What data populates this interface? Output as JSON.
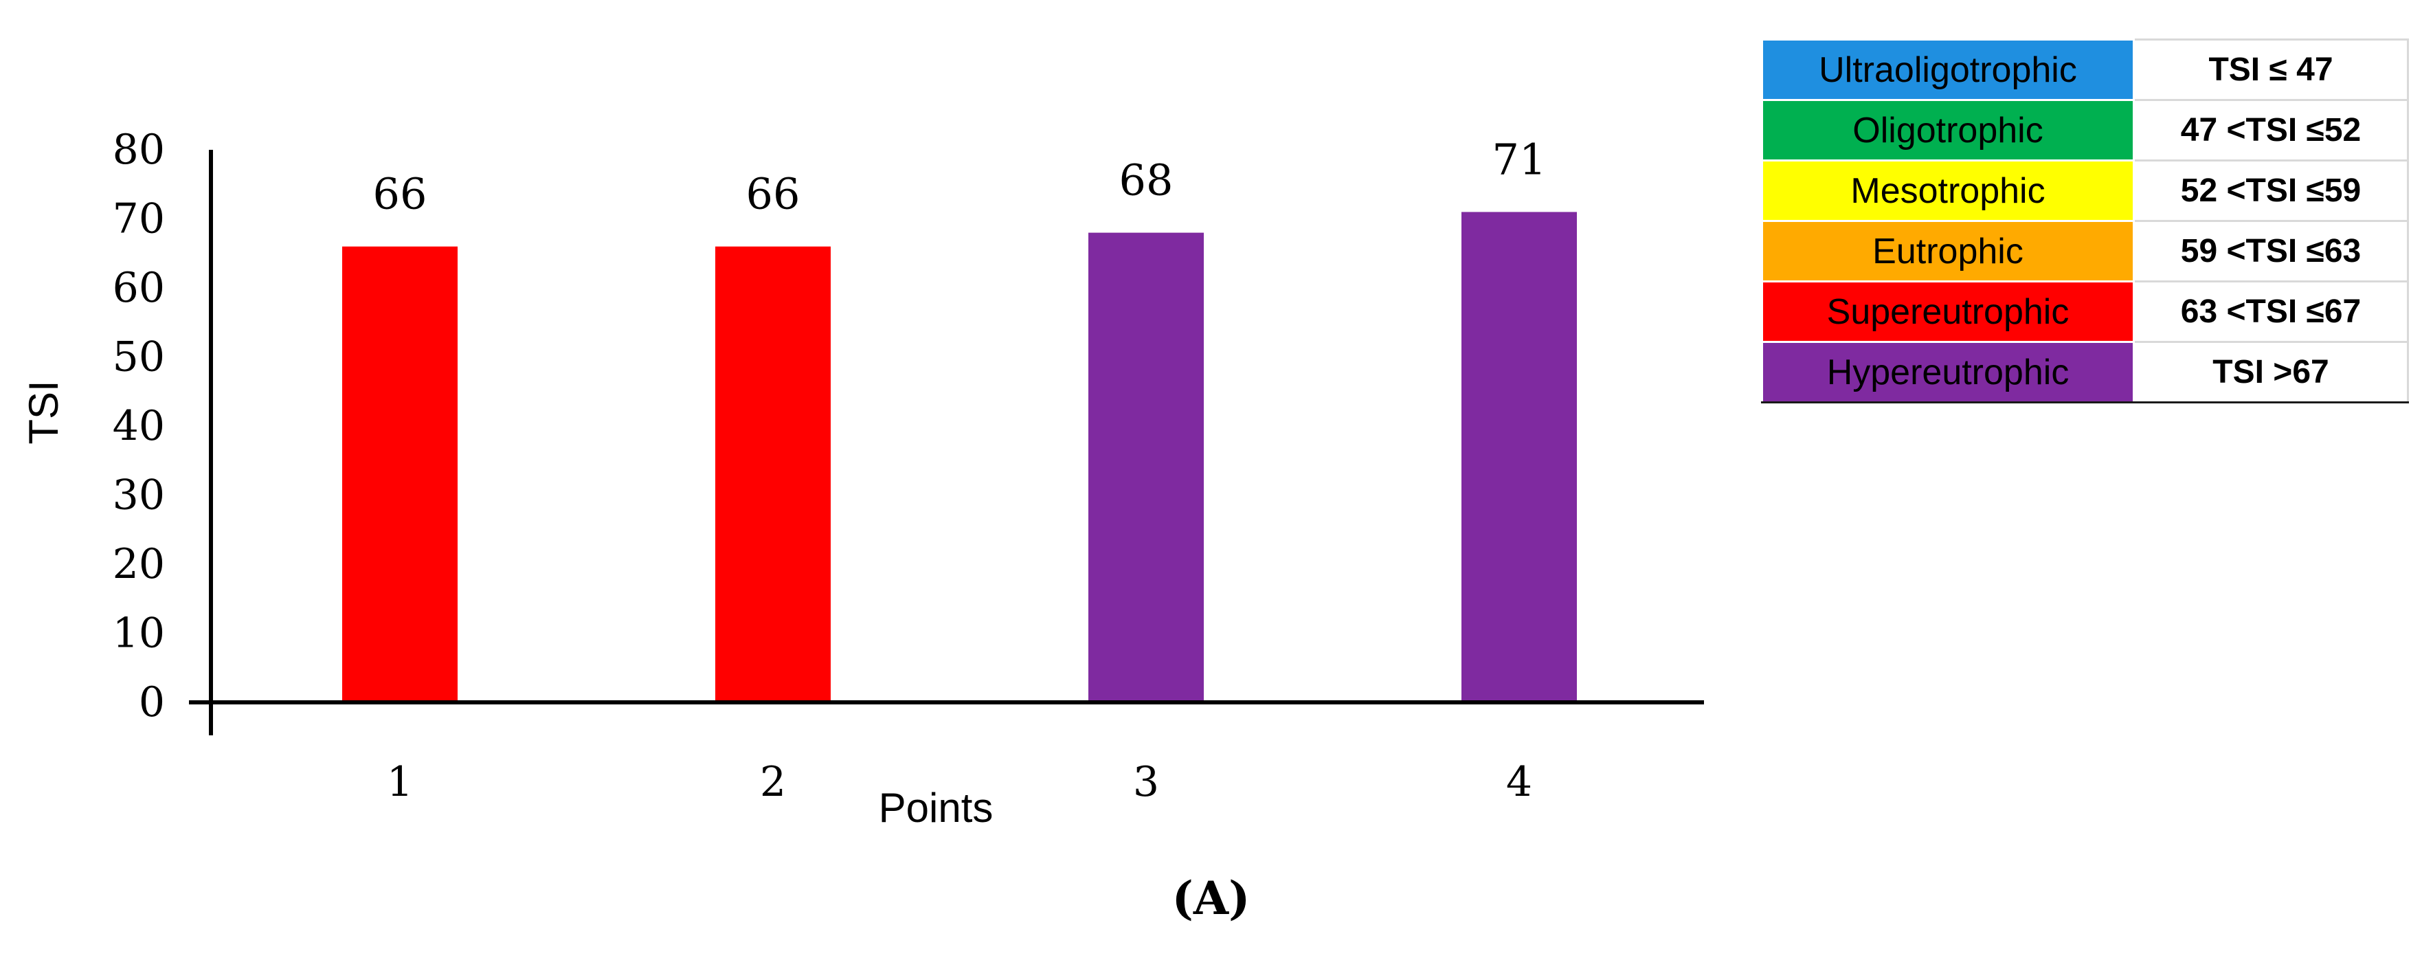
{
  "chart_data": {
    "type": "bar",
    "categories": [
      "1",
      "2",
      "3",
      "4"
    ],
    "values": [
      66,
      66,
      68,
      71
    ],
    "data_labels": [
      "66",
      "66",
      "68",
      "71"
    ],
    "bar_colors": [
      "#ff0000",
      "#ff0000",
      "#7f2aa0",
      "#7f2aa0"
    ],
    "xlabel": "Points",
    "ylabel": "TSI",
    "ylim": [
      0,
      80
    ],
    "yticks": [
      "0",
      "10",
      "20",
      "30",
      "40",
      "50",
      "60",
      "70",
      "80"
    ],
    "grid": false,
    "legend": "table at top-right"
  },
  "legend_table": [
    {
      "category": "Ultraoligotrophic",
      "range": "TSI ≤ 47",
      "color": "#1f8fe0"
    },
    {
      "category": "Oligotrophic",
      "range": "47 <TSI ≤52",
      "color": "#00b050"
    },
    {
      "category": "Mesotrophic",
      "range": "52 <TSI ≤59",
      "color": "#ffff00"
    },
    {
      "category": "Eutrophic",
      "range": "59 <TSI ≤63",
      "color": "#ffaa00"
    },
    {
      "category": "Supereutrophic",
      "range": "63 <TSI ≤67",
      "color": "#ff0000"
    },
    {
      "category": "Hypereutrophic",
      "range": "TSI >67",
      "color": "#7f2aa0"
    }
  ],
  "panel_label": "(A)"
}
